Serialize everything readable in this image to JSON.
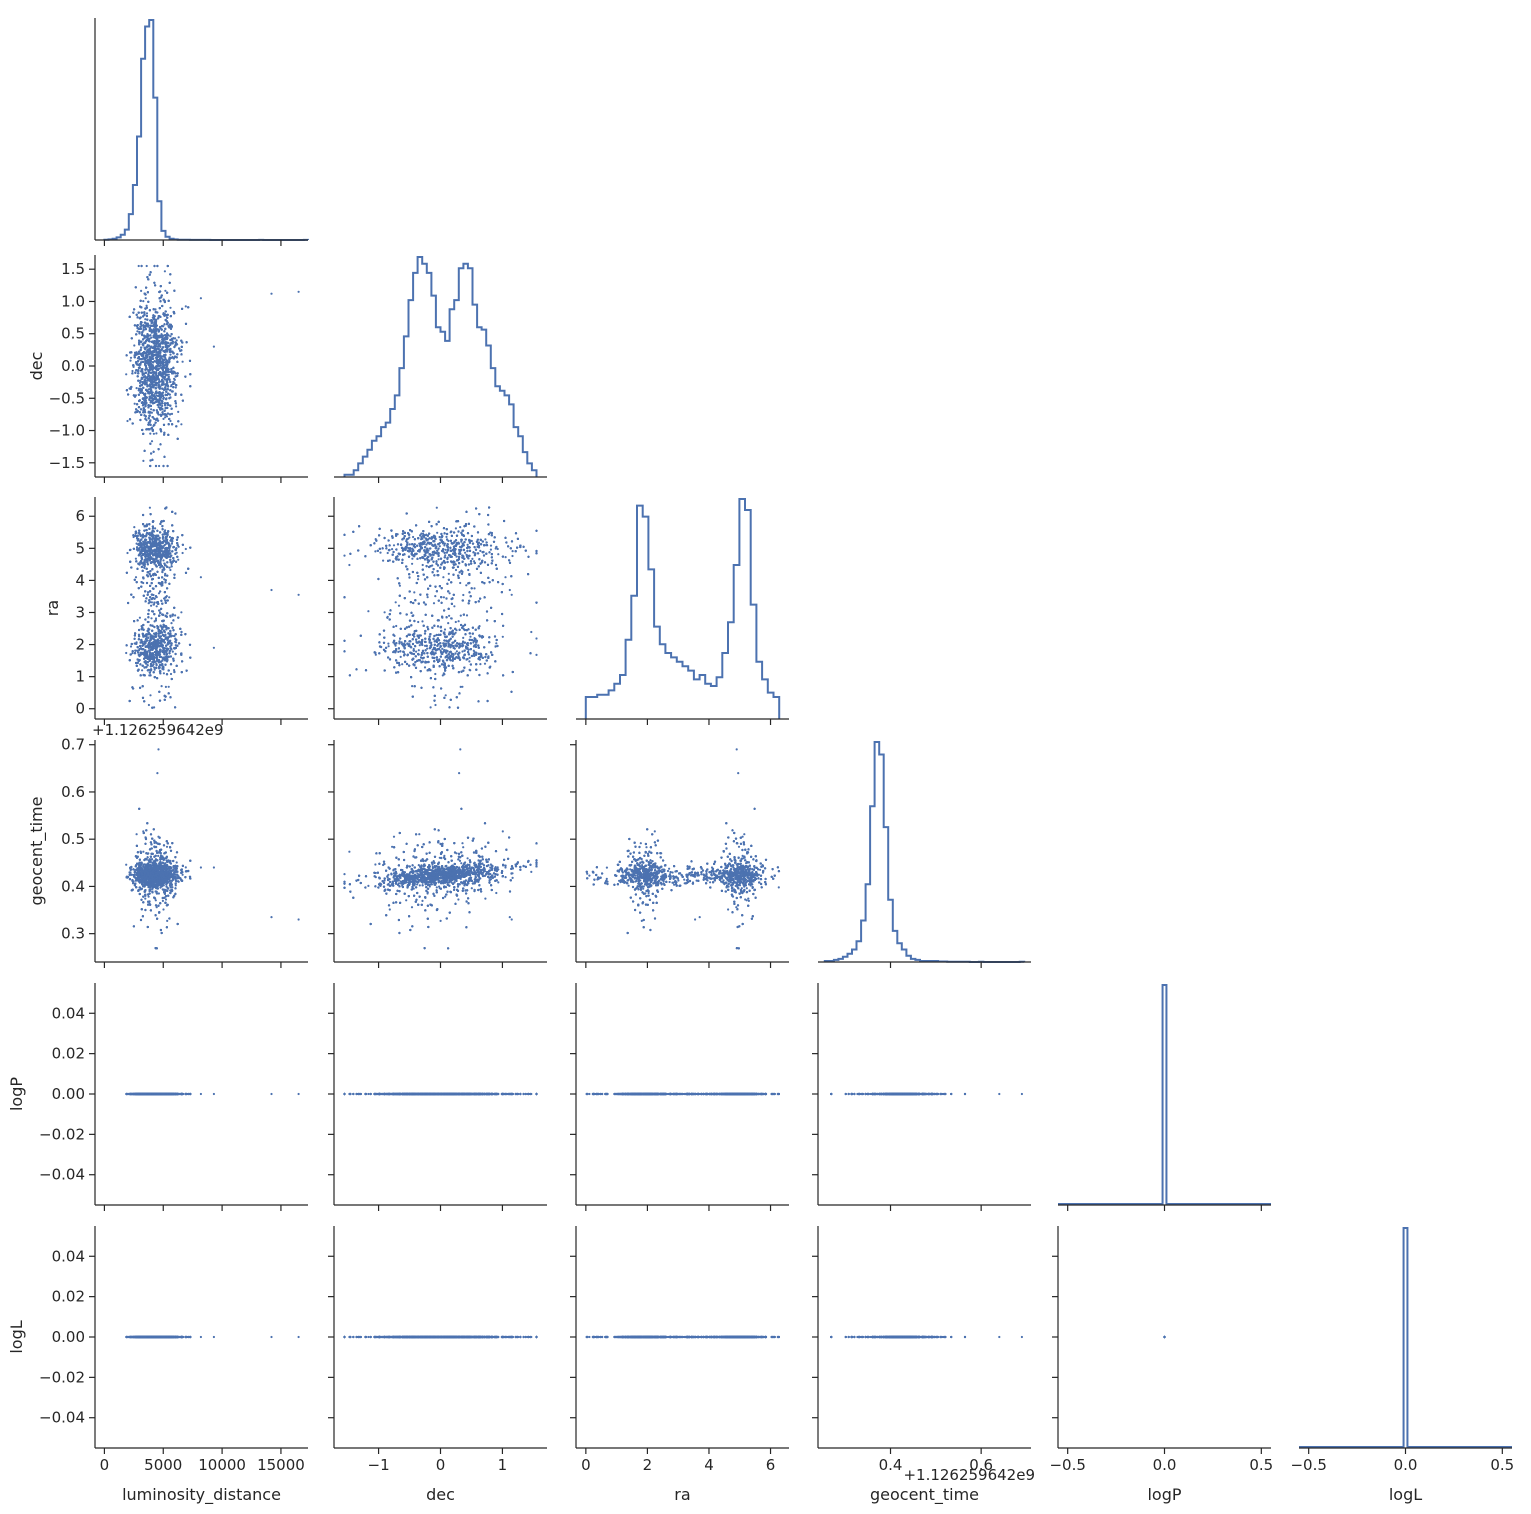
{
  "chart_data": {
    "type": "scatter",
    "variables": [
      {
        "key": "luminosity_distance",
        "label": "luminosity_distance",
        "range": [
          -800,
          17300
        ],
        "ticks": [
          0,
          5000,
          10000,
          15000
        ],
        "tick_labels": [
          "0",
          "5000",
          "10000",
          "15000"
        ]
      },
      {
        "key": "dec",
        "label": "dec",
        "range": [
          -1.72,
          1.72
        ],
        "ticks": [
          -1.5,
          -1.0,
          -0.5,
          0.0,
          0.5,
          1.0,
          1.5
        ],
        "tick_labels": [
          "−1.5",
          "−1.0",
          "−0.5",
          "0.0",
          "0.5",
          "1.0",
          "1.5"
        ],
        "x_ticks": [
          -1,
          0,
          1
        ],
        "x_tick_labels": [
          "−1",
          "0",
          "1"
        ]
      },
      {
        "key": "ra",
        "label": "ra",
        "range": [
          -0.32,
          6.6
        ],
        "ticks": [
          0,
          1,
          2,
          3,
          4,
          5,
          6
        ],
        "tick_labels": [
          "0",
          "1",
          "2",
          "3",
          "4",
          "5",
          "6"
        ],
        "x_ticks": [
          0,
          2,
          4,
          6
        ],
        "x_tick_labels": [
          "0",
          "2",
          "4",
          "6"
        ]
      },
      {
        "key": "geocent_time",
        "label": "geocent_time",
        "range": [
          0.24,
          0.71
        ],
        "ticks": [
          0.3,
          0.4,
          0.5,
          0.6,
          0.7
        ],
        "tick_labels": [
          "0.3",
          "0.4",
          "0.5",
          "0.6",
          "0.7"
        ],
        "x_ticks": [
          0.4,
          0.6
        ],
        "x_tick_labels": [
          "0.4",
          "0.6"
        ],
        "offset_text": "+1.126259642e9"
      },
      {
        "key": "logP",
        "label": "logP",
        "range": [
          -0.055,
          0.055
        ],
        "ticks": [
          -0.04,
          -0.02,
          0.0,
          0.02,
          0.04
        ],
        "tick_labels": [
          "−0.04",
          "−0.02",
          "0.00",
          "0.02",
          "0.04"
        ],
        "x_range": [
          -0.55,
          0.55
        ],
        "x_ticks": [
          -0.5,
          0.0,
          0.5
        ],
        "x_tick_labels": [
          "−0.5",
          "0.0",
          "0.5"
        ]
      },
      {
        "key": "logL",
        "label": "logL",
        "range": [
          -0.055,
          0.055
        ],
        "ticks": [
          -0.04,
          -0.02,
          0.0,
          0.02,
          0.04
        ],
        "tick_labels": [
          "−0.04",
          "−0.02",
          "0.00",
          "0.02",
          "0.04"
        ],
        "x_range": [
          -0.55,
          0.55
        ],
        "x_ticks": [
          -0.5,
          0.0,
          0.5
        ],
        "x_tick_labels": [
          "−0.5",
          "0.0",
          "0.5"
        ]
      }
    ],
    "histograms": {
      "luminosity_distance": {
        "edges_range": [
          0,
          17300
        ],
        "counts": [
          0.5,
          1,
          2,
          4,
          8,
          16,
          40,
          85,
          160,
          280,
          330,
          340,
          220,
          60,
          14,
          5,
          2,
          1,
          0.5,
          0.5,
          0.3,
          0.2,
          0.1,
          0.1,
          0.1,
          0.1,
          0,
          0,
          0,
          0,
          0,
          0,
          0,
          0,
          0,
          0,
          0,
          0,
          0.2,
          0,
          0,
          0,
          0,
          0,
          0,
          0,
          0,
          0,
          0,
          0.2
        ]
      },
      "dec": {
        "edges_range": [
          -1.55,
          1.55
        ],
        "counts": [
          1,
          1,
          3,
          6,
          9,
          12,
          16,
          18,
          22,
          24,
          30,
          36,
          48,
          62,
          78,
          90,
          97,
          94,
          90,
          80,
          66,
          64,
          60,
          74,
          78,
          92,
          94,
          92,
          76,
          66,
          65,
          58,
          48,
          40,
          38,
          36,
          32,
          22,
          18,
          11,
          6,
          3
        ]
      },
      "ra": {
        "edges_range": [
          0,
          6.28
        ],
        "counts": [
          10,
          10,
          11,
          11,
          13,
          16,
          20,
          36,
          56,
          97,
          92,
          68,
          42,
          34,
          30,
          28,
          26,
          24,
          22,
          18,
          20,
          16,
          15,
          19,
          30,
          44,
          70,
          100,
          95,
          52,
          26,
          18,
          12,
          10
        ]
      },
      "geocent_time": {
        "edges_range": [
          0.255,
          0.695
        ],
        "counts": [
          1,
          1,
          2,
          3,
          5,
          8,
          12,
          20,
          40,
          75,
          150,
          212,
          200,
          130,
          60,
          30,
          18,
          12,
          6,
          3,
          2,
          1,
          1,
          1,
          1,
          0.5,
          0.5,
          0.3,
          0.3,
          0.3,
          0.3,
          0.3,
          0,
          0,
          0.3,
          0,
          0,
          0,
          0,
          0,
          0,
          0,
          0,
          0.3
        ]
      },
      "logP": {
        "spike_at": 0.0
      },
      "logL": {
        "spike_at": 0.0
      }
    },
    "samples": {
      "n": 4000,
      "luminosity_distance": {
        "mean": 4300,
        "sd": 900,
        "min": 400,
        "max": 7300,
        "outliers": [
          8200,
          9300,
          14200,
          16500
        ]
      },
      "dec": {
        "modes": [
          {
            "center": -0.3,
            "sd": 0.35,
            "weight": 0.45
          },
          {
            "center": 0.35,
            "sd": 0.35,
            "weight": 0.45
          },
          {
            "center": 0.0,
            "sd": 0.8,
            "weight": 0.1
          }
        ],
        "range": [
          -1.55,
          1.55
        ]
      },
      "ra": {
        "modes": [
          {
            "center": 1.9,
            "sd": 0.35,
            "weight": 0.35
          },
          {
            "center": 5.0,
            "sd": 0.3,
            "weight": 0.35
          },
          {
            "center": 3.1,
            "sd": 1.7,
            "weight": 0.3
          }
        ],
        "range": [
          0,
          6.28
        ]
      },
      "geocent_time": {
        "baseline": 0.423,
        "max": 0.69,
        "min": 0.255
      },
      "logP": {
        "value": 0.0
      },
      "logL": {
        "value": 0.0
      }
    },
    "corner": "lower",
    "grid": false,
    "legend": null
  },
  "colors": {
    "marks": "#4c72b0",
    "axes": "#262626",
    "background": "#ffffff"
  }
}
